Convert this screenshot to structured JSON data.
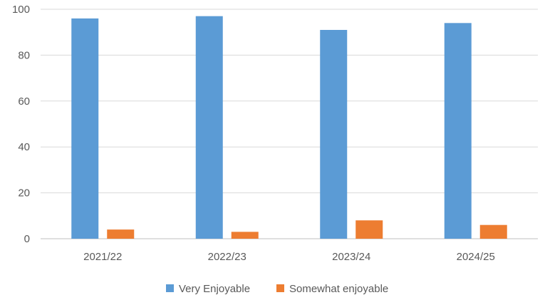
{
  "chart_data": {
    "type": "bar",
    "categories": [
      "2021/22",
      "2022/23",
      "2023/24",
      "2024/25"
    ],
    "series": [
      {
        "name": "Very Enjoyable",
        "values": [
          96,
          97,
          91,
          94
        ],
        "color": "#5b9bd5"
      },
      {
        "name": "Somewhat enjoyable",
        "values": [
          4,
          3,
          8,
          6
        ],
        "color": "#ed7d31"
      }
    ],
    "ylim": [
      0,
      100
    ],
    "yticks": [
      0,
      20,
      40,
      60,
      80,
      100
    ],
    "grid": true,
    "legend_position": "bottom",
    "title": "",
    "xlabel": "",
    "ylabel": ""
  }
}
